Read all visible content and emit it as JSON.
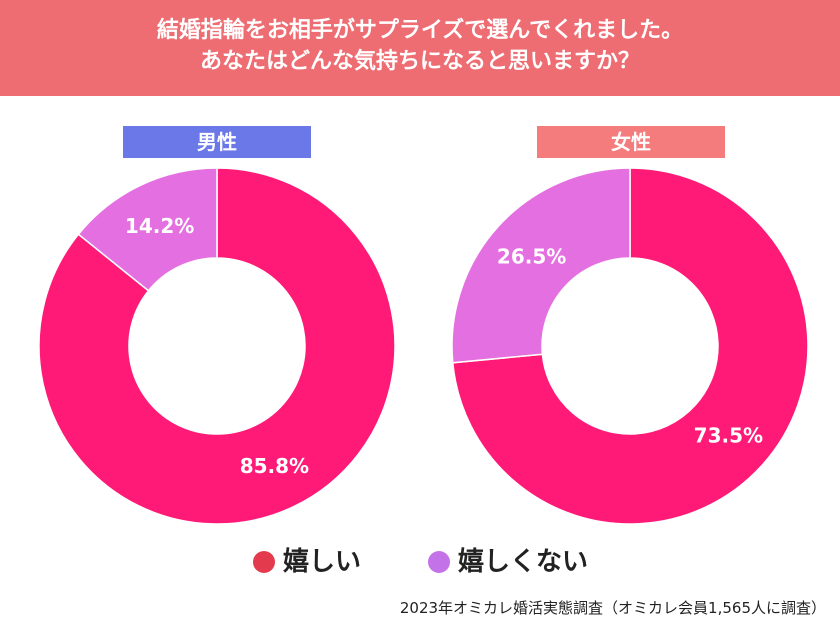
{
  "header": {
    "line1": "結婚指輪をお相手がサプライズで選んでくれました。",
    "line2": "あなたはどんな気持ちになると思いますか？"
  },
  "colors": {
    "header_bg": "#ee6d73",
    "male_label_bg": "#6b78e8",
    "female_label_bg": "#f47c7c",
    "happy": "#fe1a76",
    "not_happy": "#e46fe0",
    "legend_happy_dot": "#e33a4d",
    "legend_unhappy_dot": "#c472e8"
  },
  "chart_data": [
    {
      "type": "pie",
      "variant": "donut",
      "title": "男性",
      "categories": [
        "嬉しい",
        "嬉しくない"
      ],
      "values": [
        85.8,
        14.2
      ],
      "labels": [
        "85.8%",
        "14.2%"
      ],
      "unit": "%"
    },
    {
      "type": "pie",
      "variant": "donut",
      "title": "女性",
      "categories": [
        "嬉しい",
        "嬉しくない"
      ],
      "values": [
        73.5,
        26.5
      ],
      "labels": [
        "73.5%",
        "26.5%"
      ],
      "unit": "%"
    }
  ],
  "legend": [
    {
      "label": "嬉しい"
    },
    {
      "label": "嬉しくない"
    }
  ],
  "footnote": "2023年オミカレ婚活実態調査（オミカレ会員1,565人に調査）"
}
